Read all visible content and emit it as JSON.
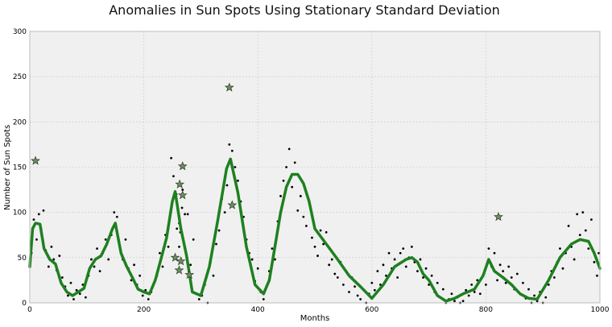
{
  "chart_data": {
    "type": "scatter",
    "title": "Anomalies in Sun Spots Using Stationary Standard Deviation",
    "xlabel": "Months",
    "ylabel": "Number of Sun Spots",
    "xlim": [
      0,
      1000
    ],
    "ylim": [
      0,
      300
    ],
    "xticks": [
      "0",
      "200",
      "400",
      "600",
      "800",
      "1000"
    ],
    "yticks": [
      "0",
      "50",
      "100",
      "150",
      "200",
      "250",
      "300"
    ],
    "grid": true,
    "colors": {
      "background": "#f0f0f0",
      "grid": "#c8c8c8",
      "points": "#000000",
      "moving_average": "#1e8020",
      "anomalies": "#6b8f5e"
    },
    "moving_average": {
      "x": [
        0,
        5,
        10,
        18,
        25,
        35,
        45,
        55,
        65,
        75,
        85,
        95,
        105,
        115,
        125,
        135,
        145,
        150,
        160,
        170,
        180,
        190,
        200,
        210,
        220,
        230,
        240,
        250,
        255,
        265,
        275,
        285,
        300,
        315,
        330,
        345,
        352,
        365,
        380,
        395,
        410,
        420,
        430,
        440,
        450,
        460,
        470,
        480,
        490,
        500,
        520,
        540,
        560,
        580,
        600,
        620,
        640,
        660,
        670,
        680,
        690,
        700,
        715,
        730,
        745,
        760,
        780,
        795,
        805,
        815,
        830,
        845,
        860,
        875,
        890,
        910,
        930,
        950,
        965,
        980,
        990,
        1000
      ],
      "y": [
        40,
        82,
        88,
        87,
        60,
        48,
        43,
        22,
        12,
        8,
        12,
        16,
        38,
        48,
        52,
        65,
        82,
        88,
        55,
        40,
        28,
        15,
        12,
        10,
        25,
        48,
        72,
        112,
        123,
        82,
        52,
        12,
        8,
        40,
        92,
        148,
        159,
        122,
        62,
        20,
        10,
        25,
        62,
        100,
        128,
        142,
        142,
        132,
        112,
        82,
        65,
        48,
        30,
        18,
        5,
        20,
        40,
        48,
        50,
        45,
        32,
        25,
        8,
        2,
        5,
        10,
        15,
        30,
        48,
        35,
        28,
        20,
        10,
        5,
        4,
        25,
        50,
        65,
        70,
        68,
        55,
        38
      ]
    },
    "points": {
      "x": [
        3,
        7,
        12,
        16,
        20,
        24,
        28,
        33,
        38,
        42,
        47,
        52,
        57,
        62,
        67,
        72,
        77,
        82,
        88,
        93,
        98,
        103,
        108,
        113,
        118,
        123,
        128,
        133,
        138,
        143,
        148,
        153,
        158,
        163,
        168,
        173,
        178,
        183,
        188,
        193,
        198,
        203,
        208,
        213,
        218,
        223,
        228,
        233,
        238,
        243,
        248,
        252,
        257,
        262,
        267,
        272,
        277,
        282,
        287,
        292,
        297,
        302,
        307,
        312,
        317,
        322,
        327,
        332,
        337,
        342,
        346,
        350,
        355,
        360,
        365,
        370,
        375,
        380,
        385,
        390,
        395,
        400,
        405,
        410,
        415,
        420,
        425,
        430,
        435,
        440,
        445,
        450,
        455,
        460,
        465,
        470,
        475,
        480,
        485,
        490,
        495,
        500,
        505,
        510,
        515,
        520,
        525,
        530,
        535,
        540,
        545,
        550,
        555,
        560,
        565,
        570,
        575,
        580,
        585,
        590,
        595,
        600,
        605,
        610,
        615,
        620,
        625,
        630,
        635,
        640,
        645,
        650,
        655,
        660,
        665,
        670,
        675,
        680,
        685,
        690,
        695,
        700,
        705,
        710,
        715,
        720,
        725,
        730,
        735,
        740,
        745,
        750,
        755,
        760,
        765,
        770,
        775,
        780,
        785,
        790,
        795,
        800,
        805,
        810,
        815,
        820,
        825,
        830,
        835,
        840,
        845,
        850,
        855,
        860,
        865,
        870,
        875,
        880,
        885,
        890,
        895,
        900,
        905,
        910,
        915,
        920,
        925,
        930,
        935,
        940,
        945,
        950,
        955,
        960,
        965,
        970,
        975,
        980,
        985,
        990,
        995,
        998
      ],
      "y": [
        55,
        92,
        70,
        98,
        82,
        102,
        58,
        40,
        62,
        48,
        36,
        52,
        28,
        18,
        8,
        22,
        4,
        14,
        10,
        20,
        6,
        30,
        48,
        40,
        60,
        35,
        55,
        70,
        48,
        75,
        100,
        95,
        62,
        48,
        70,
        38,
        25,
        42,
        20,
        30,
        8,
        14,
        4,
        12,
        22,
        30,
        55,
        40,
        75,
        62,
        160,
        140,
        120,
        88,
        105,
        60,
        98,
        42,
        70,
        10,
        4,
        8,
        20,
        0,
        45,
        30,
        65,
        80,
        115,
        100,
        130,
        175,
        168,
        150,
        135,
        112,
        95,
        70,
        55,
        48,
        24,
        38,
        12,
        4,
        18,
        35,
        60,
        48,
        90,
        118,
        135,
        150,
        170,
        128,
        155,
        102,
        118,
        95,
        85,
        110,
        72,
        62,
        52,
        80,
        65,
        78,
        42,
        48,
        32,
        28,
        45,
        20,
        35,
        12,
        28,
        18,
        8,
        4,
        15,
        0,
        10,
        22,
        14,
        35,
        20,
        42,
        30,
        55,
        38,
        48,
        28,
        55,
        60,
        40,
        50,
        62,
        45,
        35,
        48,
        28,
        38,
        20,
        30,
        12,
        22,
        6,
        15,
        0,
        4,
        10,
        2,
        6,
        0,
        2,
        14,
        8,
        20,
        12,
        25,
        10,
        30,
        20,
        60,
        40,
        55,
        25,
        42,
        35,
        22,
        40,
        28,
        15,
        32,
        10,
        22,
        5,
        15,
        0,
        8,
        2,
        12,
        0,
        6,
        20,
        35,
        28,
        45,
        60,
        38,
        55,
        85,
        62,
        48,
        98,
        75,
        100,
        80,
        60,
        92,
        45,
        30,
        55
      ],
      "outlier_points": {
        "x": [
          10,
          258,
          262,
          264,
          268,
          272,
          355
        ],
        "y": [
          157,
          82,
          62,
          78,
          125,
          98,
          108
        ]
      }
    },
    "anomalies": {
      "x": [
        10,
        255,
        262,
        265,
        268,
        268,
        280,
        350,
        355,
        822
      ],
      "y": [
        157,
        50,
        36,
        46,
        151,
        119,
        31,
        238,
        108,
        95
      ],
      "more": [
        [
          263,
          131
        ]
      ]
    }
  }
}
